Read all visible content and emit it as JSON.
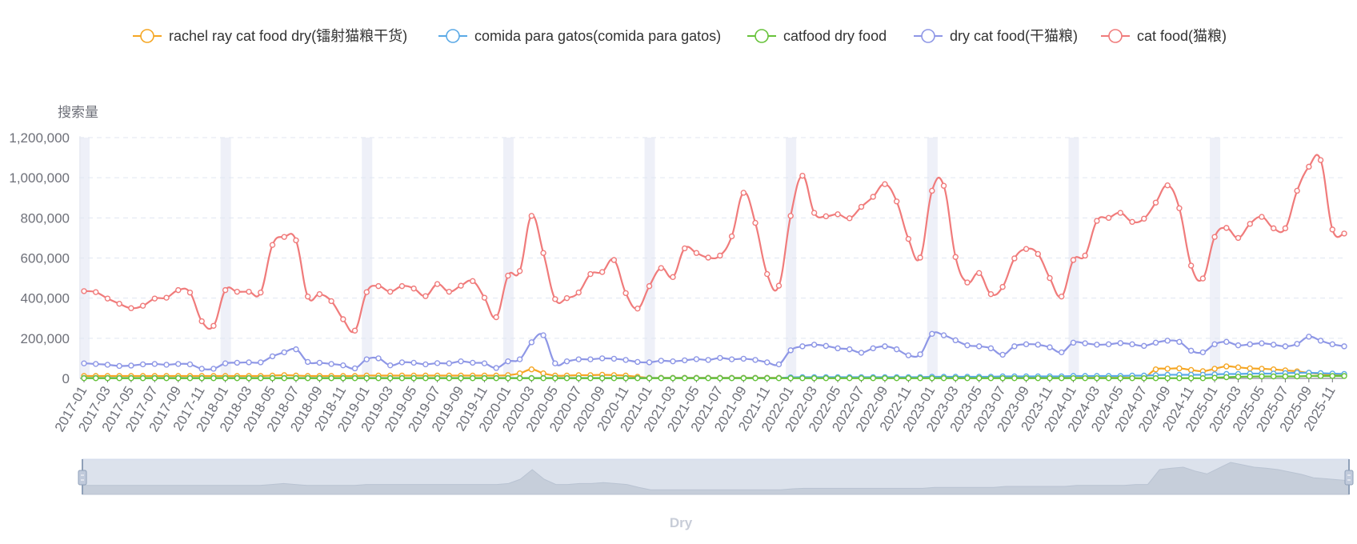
{
  "chart_data": {
    "type": "line",
    "y_axis_name": "搜索量",
    "xlabel": "Dry",
    "ylim": [
      0,
      1200000
    ],
    "y_ticks": [
      0,
      200000,
      400000,
      600000,
      800000,
      1000000,
      1200000
    ],
    "y_tick_labels": [
      "0",
      "200,000",
      "400,000",
      "600,000",
      "800,000",
      "1,000,000",
      "1,200,000"
    ],
    "x": [
      "2017-01",
      "2017-02",
      "2017-03",
      "2017-04",
      "2017-05",
      "2017-06",
      "2017-07",
      "2017-08",
      "2017-09",
      "2017-10",
      "2017-11",
      "2017-12",
      "2018-01",
      "2018-02",
      "2018-03",
      "2018-04",
      "2018-05",
      "2018-06",
      "2018-07",
      "2018-08",
      "2018-09",
      "2018-10",
      "2018-11",
      "2018-12",
      "2019-01",
      "2019-02",
      "2019-03",
      "2019-04",
      "2019-05",
      "2019-06",
      "2019-07",
      "2019-08",
      "2019-09",
      "2019-10",
      "2019-11",
      "2019-12",
      "2020-01",
      "2020-02",
      "2020-03",
      "2020-04",
      "2020-05",
      "2020-06",
      "2020-07",
      "2020-08",
      "2020-09",
      "2020-10",
      "2020-11",
      "2020-12",
      "2021-01",
      "2021-02",
      "2021-03",
      "2021-04",
      "2021-05",
      "2021-06",
      "2021-07",
      "2021-08",
      "2021-09",
      "2021-10",
      "2021-11",
      "2021-12",
      "2022-01",
      "2022-02",
      "2022-03",
      "2022-04",
      "2022-05",
      "2022-06",
      "2022-07",
      "2022-08",
      "2022-09",
      "2022-10",
      "2022-11",
      "2022-12",
      "2023-01",
      "2023-02",
      "2023-03",
      "2023-04",
      "2023-05",
      "2023-06",
      "2023-07",
      "2023-08",
      "2023-09",
      "2023-10",
      "2023-11",
      "2023-12",
      "2024-01",
      "2024-02",
      "2024-03",
      "2024-04",
      "2024-05",
      "2024-06",
      "2024-07",
      "2024-08",
      "2024-09",
      "2024-10",
      "2024-11",
      "2024-12",
      "2025-01",
      "2025-02",
      "2025-03",
      "2025-04",
      "2025-05",
      "2025-06",
      "2025-07",
      "2025-08",
      "2025-09",
      "2025-10",
      "2025-11",
      "2025-12"
    ],
    "x_tick_labels": [
      "2017-01",
      "2017-03",
      "2017-05",
      "2017-07",
      "2017-09",
      "2017-11",
      "2018-01",
      "2018-03",
      "2018-05",
      "2018-07",
      "2018-09",
      "2018-11",
      "2019-01",
      "2019-03",
      "2019-05",
      "2019-07",
      "2019-09",
      "2019-11",
      "2020-01",
      "2020-03",
      "2020-05",
      "2020-07",
      "2020-09",
      "2020-11",
      "2021-01",
      "2021-03",
      "2021-05",
      "2021-07",
      "2021-09",
      "2021-11",
      "2022-01",
      "2022-03",
      "2022-05",
      "2022-07",
      "2022-09",
      "2022-11",
      "2023-01",
      "2023-03",
      "2023-05",
      "2023-07",
      "2023-09",
      "2023-11",
      "2024-01",
      "2024-03",
      "2024-05",
      "2024-07",
      "2024-09",
      "2024-11",
      "2025-01",
      "2025-03",
      "2025-05",
      "2025-07",
      "2025-09",
      "2025-11"
    ],
    "series": [
      {
        "name": "rachel ray cat food dry(镭射猫粮干货)",
        "color": "#f5a623",
        "values": [
          12000,
          12000,
          12000,
          12000,
          12000,
          12000,
          12000,
          12000,
          12000,
          12000,
          12000,
          12000,
          12000,
          12000,
          12000,
          12000,
          14000,
          16000,
          14000,
          12000,
          12000,
          12000,
          12000,
          12000,
          14000,
          14000,
          14000,
          14000,
          14000,
          14000,
          14000,
          14000,
          14000,
          14000,
          14000,
          14000,
          16000,
          25000,
          45000,
          25000,
          14000,
          14000,
          16000,
          16000,
          18000,
          16000,
          14000,
          8000,
          3000,
          3000,
          3000,
          3000,
          3000,
          3000,
          3000,
          3000,
          3000,
          3000,
          3000,
          3000,
          3000,
          3000,
          3000,
          3000,
          3000,
          3000,
          3000,
          3000,
          3000,
          3000,
          3000,
          3000,
          3000,
          3000,
          3000,
          3000,
          3000,
          3000,
          3000,
          3000,
          3000,
          3000,
          3000,
          3000,
          3000,
          3000,
          3000,
          3000,
          3000,
          3000,
          3000,
          45000,
          48000,
          50000,
          42000,
          36000,
          48000,
          60000,
          55000,
          50000,
          48000,
          45000,
          40000,
          35000,
          28000,
          22000,
          18000,
          15000
        ]
      },
      {
        "name": "comida para gatos(comida para gatos)",
        "color": "#5aa9e6",
        "values": [
          2000,
          2000,
          2000,
          2000,
          2000,
          2000,
          2000,
          2000,
          2000,
          2000,
          2000,
          2000,
          2000,
          2000,
          2000,
          2000,
          2000,
          2000,
          2000,
          2000,
          2000,
          2000,
          2000,
          2000,
          2000,
          2000,
          2000,
          2000,
          2000,
          2000,
          2000,
          2000,
          2000,
          2000,
          2000,
          2000,
          2000,
          2000,
          2000,
          2000,
          2000,
          2000,
          2000,
          2000,
          2000,
          2000,
          2000,
          2000,
          2000,
          2000,
          2000,
          2000,
          2000,
          2000,
          2000,
          2000,
          2000,
          2000,
          2000,
          2000,
          5000,
          6000,
          6000,
          6000,
          6000,
          6000,
          6000,
          6000,
          6000,
          6000,
          6000,
          6000,
          8000,
          8000,
          8000,
          8000,
          8000,
          8000,
          10000,
          10000,
          10000,
          10000,
          10000,
          10000,
          12000,
          12000,
          12000,
          12000,
          12000,
          14000,
          14000,
          16000,
          18000,
          18000,
          18000,
          18000,
          20000,
          22000,
          22000,
          24000,
          24000,
          24000,
          26000,
          28000,
          28000,
          26000,
          24000,
          22000
        ]
      },
      {
        "name": "catfood dry food",
        "color": "#67c23a",
        "values": [
          1000,
          1000,
          1000,
          1000,
          1000,
          1000,
          1000,
          1000,
          1000,
          1000,
          1000,
          1000,
          1000,
          1000,
          1000,
          1000,
          1000,
          1000,
          1000,
          1000,
          1000,
          1000,
          1000,
          1000,
          1000,
          1000,
          1000,
          1000,
          1000,
          1000,
          1000,
          1000,
          1000,
          1000,
          1000,
          1000,
          1000,
          1000,
          1000,
          1000,
          1000,
          1000,
          1000,
          1000,
          1000,
          1000,
          1000,
          1000,
          1000,
          1000,
          1000,
          1000,
          1000,
          1000,
          1000,
          1000,
          1000,
          1000,
          1000,
          1000,
          1000,
          1000,
          1000,
          1000,
          1000,
          1000,
          1000,
          1000,
          1000,
          1000,
          1000,
          1000,
          1000,
          1000,
          1000,
          1000,
          1000,
          1000,
          1000,
          1000,
          1000,
          1000,
          1000,
          1000,
          1000,
          1000,
          1000,
          1000,
          1000,
          1000,
          1000,
          1000,
          1000,
          1000,
          1000,
          1000,
          3000,
          6000,
          8000,
          9000,
          10000,
          10000,
          10000,
          10000,
          12000,
          12000,
          12000,
          12000
        ]
      },
      {
        "name": "dry cat food(干猫粮)",
        "color": "#8e97e6",
        "values": [
          75000,
          72000,
          68000,
          62000,
          64000,
          70000,
          72000,
          68000,
          72000,
          70000,
          48000,
          48000,
          75000,
          78000,
          80000,
          80000,
          110000,
          130000,
          145000,
          82000,
          78000,
          72000,
          65000,
          50000,
          95000,
          100000,
          65000,
          80000,
          78000,
          70000,
          76000,
          75000,
          85000,
          78000,
          75000,
          52000,
          85000,
          95000,
          180000,
          215000,
          75000,
          85000,
          95000,
          95000,
          100000,
          98000,
          92000,
          82000,
          80000,
          88000,
          85000,
          90000,
          96000,
          92000,
          102000,
          95000,
          98000,
          92000,
          80000,
          70000,
          140000,
          160000,
          168000,
          162000,
          150000,
          145000,
          128000,
          150000,
          160000,
          145000,
          115000,
          120000,
          222000,
          215000,
          190000,
          165000,
          160000,
          150000,
          118000,
          160000,
          170000,
          168000,
          155000,
          130000,
          178000,
          175000,
          168000,
          170000,
          176000,
          170000,
          162000,
          178000,
          188000,
          182000,
          138000,
          130000,
          170000,
          182000,
          165000,
          170000,
          175000,
          168000,
          160000,
          172000,
          208000,
          188000,
          170000,
          160000
        ]
      },
      {
        "name": "cat food(猫粮)",
        "color": "#f07b7b",
        "values": [
          435000,
          430000,
          398000,
          372000,
          350000,
          362000,
          398000,
          402000,
          440000,
          428000,
          285000,
          262000,
          440000,
          432000,
          432000,
          428000,
          665000,
          705000,
          688000,
          408000,
          420000,
          385000,
          295000,
          238000,
          430000,
          460000,
          432000,
          460000,
          448000,
          410000,
          470000,
          432000,
          462000,
          485000,
          402000,
          305000,
          512000,
          535000,
          810000,
          625000,
          395000,
          400000,
          428000,
          520000,
          530000,
          590000,
          425000,
          348000,
          460000,
          550000,
          505000,
          648000,
          625000,
          602000,
          612000,
          708000,
          925000,
          775000,
          520000,
          462000,
          810000,
          1010000,
          825000,
          808000,
          818000,
          798000,
          855000,
          905000,
          968000,
          882000,
          695000,
          602000,
          935000,
          960000,
          605000,
          478000,
          525000,
          420000,
          456000,
          598000,
          645000,
          620000,
          500000,
          408000,
          590000,
          612000,
          785000,
          800000,
          825000,
          780000,
          796000,
          876000,
          962000,
          848000,
          562000,
          498000,
          705000,
          750000,
          700000,
          770000,
          805000,
          748000,
          748000,
          935000,
          1055000,
          1088000,
          742000,
          722000
        ]
      }
    ]
  }
}
